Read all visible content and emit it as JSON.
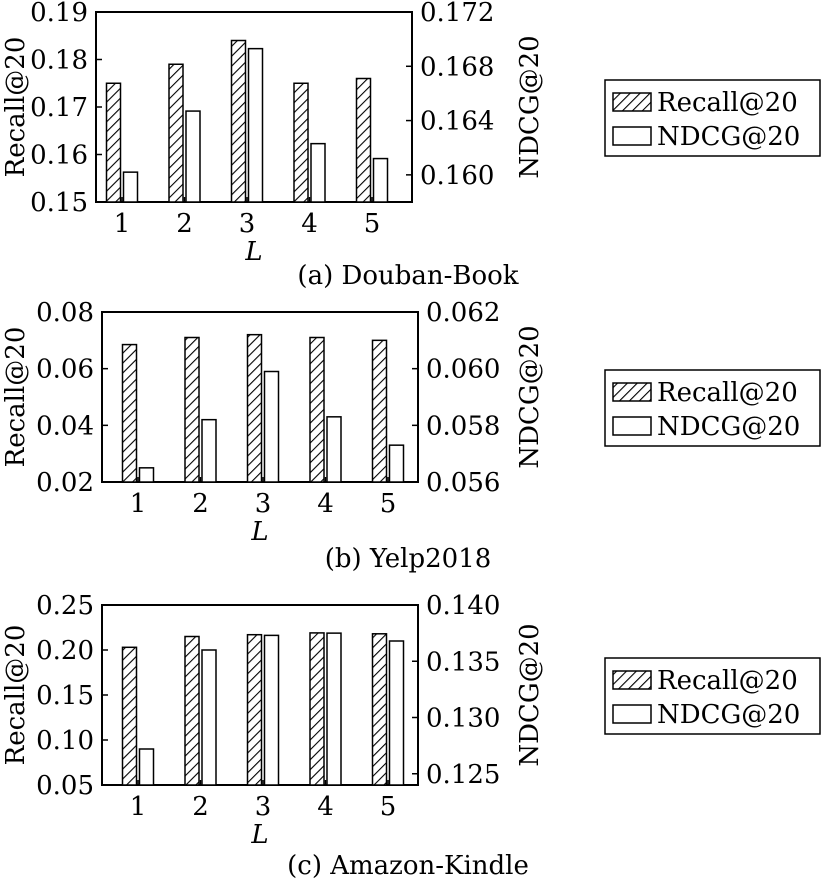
{
  "chart_data": [
    {
      "type": "bar",
      "caption": "(a) Douban-Book",
      "xlabel": "L",
      "categories": [
        "1",
        "2",
        "3",
        "4",
        "5"
      ],
      "y_left": {
        "label": "Recall@20",
        "ylim": [
          0.15,
          0.19
        ],
        "ticks": [
          "0.15",
          "0.16",
          "0.17",
          "0.18",
          "0.19"
        ]
      },
      "y_right": {
        "label": "NDCG@20",
        "ylim": [
          0.158,
          0.172
        ],
        "ticks": [
          "0.160",
          "0.164",
          "0.168",
          "0.172"
        ]
      },
      "series": [
        {
          "name": "Recall@20",
          "axis": "left",
          "pattern": "hatched",
          "values": [
            0.175,
            0.179,
            0.184,
            0.175,
            0.176
          ]
        },
        {
          "name": "NDCG@20",
          "axis": "right",
          "pattern": "white",
          "values": [
            0.1602,
            0.1647,
            0.1693,
            0.1623,
            0.1612
          ]
        }
      ],
      "legend": {
        "placement": "right",
        "entries": [
          "Recall@20",
          "NDCG@20"
        ]
      }
    },
    {
      "type": "bar",
      "caption": "(b) Yelp2018",
      "xlabel": "L",
      "categories": [
        "1",
        "2",
        "3",
        "4",
        "5"
      ],
      "y_left": {
        "label": "Recall@20",
        "ylim": [
          0.02,
          0.08
        ],
        "ticks": [
          "0.02",
          "0.04",
          "0.06",
          "0.08"
        ]
      },
      "y_right": {
        "label": "NDCG@20",
        "ylim": [
          0.056,
          0.062
        ],
        "ticks": [
          "0.056",
          "0.058",
          "0.060",
          "0.062"
        ]
      },
      "series": [
        {
          "name": "Recall@20",
          "axis": "left",
          "pattern": "hatched",
          "values": [
            0.0685,
            0.071,
            0.072,
            0.071,
            0.07
          ]
        },
        {
          "name": "NDCG@20",
          "axis": "right",
          "pattern": "white",
          "values": [
            0.0565,
            0.0582,
            0.0599,
            0.0583,
            0.0573
          ]
        }
      ],
      "legend": {
        "placement": "right",
        "entries": [
          "Recall@20",
          "NDCG@20"
        ]
      }
    },
    {
      "type": "bar",
      "caption": "(c) Amazon-Kindle",
      "xlabel": "L",
      "categories": [
        "1",
        "2",
        "3",
        "4",
        "5"
      ],
      "y_left": {
        "label": "Recall@20",
        "ylim": [
          0.05,
          0.25
        ],
        "ticks": [
          "0.05",
          "0.10",
          "0.15",
          "0.20",
          "0.25"
        ]
      },
      "y_right": {
        "label": "NDCG@20",
        "ylim": [
          0.124,
          0.14
        ],
        "ticks": [
          "0.125",
          "0.130",
          "0.135",
          "0.140"
        ]
      },
      "series": [
        {
          "name": "Recall@20",
          "axis": "left",
          "pattern": "hatched",
          "values": [
            0.203,
            0.215,
            0.217,
            0.219,
            0.218
          ]
        },
        {
          "name": "NDCG@20",
          "axis": "right",
          "pattern": "white",
          "values": [
            0.1272,
            0.136,
            0.1373,
            0.1375,
            0.1368
          ]
        }
      ],
      "legend": {
        "placement": "right",
        "entries": [
          "Recall@20",
          "NDCG@20"
        ]
      }
    }
  ]
}
